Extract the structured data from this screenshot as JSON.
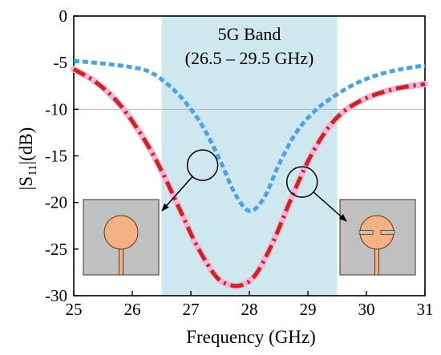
{
  "chart_data": {
    "type": "line",
    "title": "",
    "xlabel": "Frequency (GHz)",
    "ylabel_prefix": "|S",
    "ylabel_sub": "11",
    "ylabel_suffix": "|(dB)",
    "xlim": [
      25,
      31
    ],
    "ylim": [
      -30,
      0
    ],
    "xticks": [
      25,
      26,
      27,
      28,
      29,
      30,
      31
    ],
    "yticks": [
      0,
      -5,
      -10,
      -15,
      -20,
      -25,
      -30
    ],
    "reference_line_y": -10,
    "band": {
      "x0": 26.5,
      "x1": 29.5,
      "label_line1": "5G Band",
      "label_line2": "(26.5 – 29.5 GHz)",
      "color": "#cfe8ef"
    },
    "series": [
      {
        "style": "dashed",
        "color": "#4aa3e6",
        "x": [
          25,
          25.5,
          26,
          26.3,
          26.6,
          26.9,
          27.2,
          27.5,
          27.75,
          28.0,
          28.25,
          28.5,
          28.8,
          29.1,
          29.4,
          29.8,
          30.2,
          30.6,
          31
        ],
        "y": [
          -4.8,
          -5.1,
          -5.5,
          -6.0,
          -7.3,
          -9.2,
          -11.8,
          -15.5,
          -19.0,
          -20.9,
          -19.5,
          -16.0,
          -12.5,
          -10.3,
          -8.8,
          -7.3,
          -6.3,
          -5.7,
          -5.3
        ]
      },
      {
        "style": "dash-dot",
        "color": "#c6281c",
        "x": [
          25,
          25.4,
          25.8,
          26.2,
          26.5,
          26.8,
          27.1,
          27.4,
          27.6,
          27.85,
          28.1,
          28.4,
          28.7,
          29.0,
          29.3,
          29.6,
          30.0,
          30.5,
          31
        ],
        "y": [
          -5.7,
          -7.2,
          -9.6,
          -13.2,
          -16.6,
          -20.6,
          -24.6,
          -27.7,
          -28.7,
          -28.9,
          -27.8,
          -24.3,
          -19.8,
          -15.6,
          -12.4,
          -10.3,
          -8.8,
          -7.8,
          -7.3
        ]
      }
    ],
    "annotations": [
      {
        "circle": {
          "x": 27.2,
          "y": -16.0
        },
        "arrow_to": "left-inset"
      },
      {
        "circle": {
          "x": 28.9,
          "y": -17.8
        },
        "arrow_to": "right-inset"
      }
    ],
    "insets": {
      "left": {
        "shape": "circular-patch",
        "substrate_color": "#c0c0c0",
        "patch_color": "#f4b183"
      },
      "right": {
        "shape": "slotted-circular-patch",
        "substrate_color": "#c0c0c0",
        "patch_color": "#f4b183"
      }
    }
  }
}
